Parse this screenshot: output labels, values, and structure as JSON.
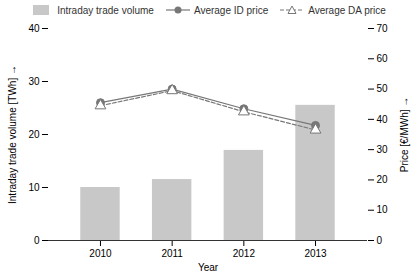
{
  "chart_data": {
    "type": "bar",
    "categories": [
      "2010",
      "2011",
      "2012",
      "2013"
    ],
    "xlabel": "Year",
    "ylabel": "Intraday trade volume [TWh]",
    "y2label": "Price [€/MWh]",
    "ylim": [
      0,
      40
    ],
    "yticks": [
      0,
      10,
      20,
      30,
      40
    ],
    "y2lim": [
      0,
      70
    ],
    "y2ticks": [
      0,
      10,
      20,
      30,
      40,
      50,
      60,
      70
    ],
    "grid": false,
    "legend": "top",
    "series": [
      {
        "name": "Intraday trade volume",
        "type": "bar",
        "color": "#c8c8c8",
        "values": [
          10.0,
          11.5,
          17.0,
          25.5
        ]
      },
      {
        "name": "Average ID price",
        "type": "line",
        "axis": "y2",
        "color": "#777777",
        "marker": "circle",
        "line_style": "solid",
        "values": [
          45.5,
          50.0,
          43.5,
          38.0
        ]
      },
      {
        "name": "Average DA price",
        "type": "line",
        "axis": "y2",
        "color": "#777777",
        "marker": "triangle",
        "line_style": "dashed",
        "values": [
          44.5,
          49.5,
          42.5,
          36.5
        ]
      }
    ]
  }
}
